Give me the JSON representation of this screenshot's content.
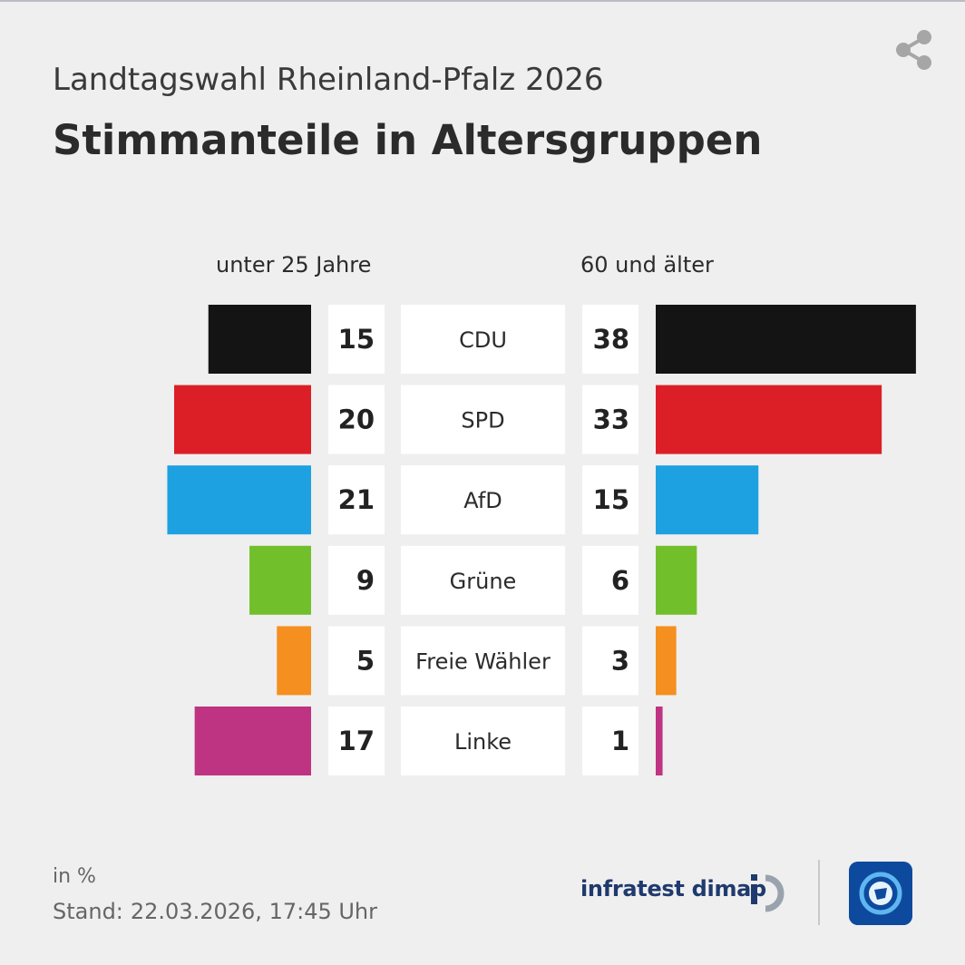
{
  "header": {
    "subtitle": "Landtagswahl Rheinland-Pfalz 2026",
    "title": "Stimmanteile in Altersgruppen"
  },
  "chart_data": {
    "type": "bar",
    "title": "Stimmanteile in Altersgruppen",
    "subtitle": "Landtagswahl Rheinland-Pfalz 2026",
    "unit": "%",
    "categories": [
      "CDU",
      "SPD",
      "AfD",
      "Grüne",
      "Freie Wähler",
      "Linke"
    ],
    "colors": [
      "#141414",
      "#dc1f26",
      "#1ea1e0",
      "#72bf2c",
      "#f58f1f",
      "#be3382"
    ],
    "series": [
      {
        "name": "unter 25 Jahre",
        "values": [
          15,
          20,
          21,
          9,
          5,
          17
        ]
      },
      {
        "name": "60 und älter",
        "values": [
          38,
          33,
          15,
          6,
          3,
          1
        ]
      }
    ],
    "ylim": [
      0,
      40
    ]
  },
  "footer": {
    "unit_note": "in %",
    "stand_label": "Stand:",
    "stand_value": "22.03.2026, 17:45 Uhr",
    "source": "infratest dimap"
  },
  "icons": {
    "share": "share-icon",
    "source_logo": "infratest-dimap-logo",
    "broadcaster_logo": "tagesschau-logo"
  }
}
